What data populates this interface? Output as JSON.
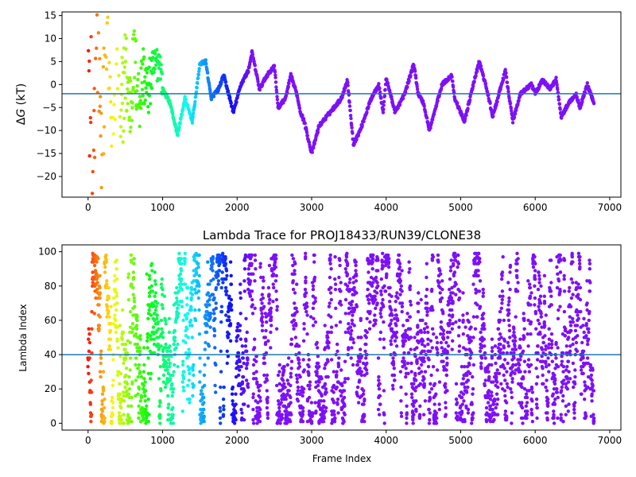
{
  "chart_data": [
    {
      "type": "scatter",
      "title": "",
      "xlabel": "",
      "ylabel": "ΔG (kT)",
      "ylabel_parts": {
        "delta": "Δ",
        "symbol": "G",
        "unit": " (kT)"
      },
      "xlim": [
        -350,
        7150
      ],
      "ylim": [
        -24.5,
        15.8
      ],
      "xticks": [
        0,
        1000,
        2000,
        3000,
        4000,
        5000,
        6000,
        7000
      ],
      "xtick_labels": [
        "0",
        "1000",
        "2000",
        "3000",
        "4000",
        "5000",
        "6000",
        "7000"
      ],
      "yticks": [
        -20,
        -15,
        -10,
        -5,
        0,
        5,
        10,
        15
      ],
      "ytick_labels": [
        "−20",
        "−15",
        "−10",
        "−5",
        "0",
        "5",
        "10",
        "15"
      ],
      "hline": -2,
      "grid": false,
      "colormap": "rainbow (red at frame 0 to violet at later frames)",
      "trace_keypoints": [
        {
          "x": 0,
          "y": 12
        },
        {
          "x": 60,
          "y": -22
        },
        {
          "x": 120,
          "y": 8
        },
        {
          "x": 180,
          "y": -18
        },
        {
          "x": 250,
          "y": 14
        },
        {
          "x": 320,
          "y": -10
        },
        {
          "x": 380,
          "y": 11
        },
        {
          "x": 430,
          "y": -14
        },
        {
          "x": 500,
          "y": 6
        },
        {
          "x": 560,
          "y": -8
        },
        {
          "x": 620,
          "y": 9
        },
        {
          "x": 680,
          "y": -6
        },
        {
          "x": 740,
          "y": 4
        },
        {
          "x": 800,
          "y": -3
        },
        {
          "x": 850,
          "y": 3
        },
        {
          "x": 900,
          "y": 7
        },
        {
          "x": 960,
          "y": 8.8
        },
        {
          "x": 1000,
          "y": -1
        },
        {
          "x": 1100,
          "y": -4
        },
        {
          "x": 1200,
          "y": -11
        },
        {
          "x": 1300,
          "y": -3
        },
        {
          "x": 1400,
          "y": -8
        },
        {
          "x": 1500,
          "y": 4.5
        },
        {
          "x": 1580,
          "y": 5
        },
        {
          "x": 1650,
          "y": -3
        },
        {
          "x": 1750,
          "y": -1
        },
        {
          "x": 1820,
          "y": 2
        },
        {
          "x": 1950,
          "y": -6
        },
        {
          "x": 2050,
          "y": 0
        },
        {
          "x": 2150,
          "y": 3
        },
        {
          "x": 2200,
          "y": 7
        },
        {
          "x": 2300,
          "y": -1
        },
        {
          "x": 2400,
          "y": 2
        },
        {
          "x": 2500,
          "y": 4
        },
        {
          "x": 2550,
          "y": -5
        },
        {
          "x": 2650,
          "y": -3
        },
        {
          "x": 2720,
          "y": 2
        },
        {
          "x": 2800,
          "y": -2
        },
        {
          "x": 2850,
          "y": -6
        },
        {
          "x": 2900,
          "y": -8
        },
        {
          "x": 3000,
          "y": -15
        },
        {
          "x": 3100,
          "y": -9
        },
        {
          "x": 3250,
          "y": -6
        },
        {
          "x": 3400,
          "y": -3
        },
        {
          "x": 3480,
          "y": 1
        },
        {
          "x": 3560,
          "y": -13
        },
        {
          "x": 3650,
          "y": -10
        },
        {
          "x": 3800,
          "y": -3
        },
        {
          "x": 3900,
          "y": 0
        },
        {
          "x": 3960,
          "y": -6
        },
        {
          "x": 4000,
          "y": 1.5
        },
        {
          "x": 4120,
          "y": -6
        },
        {
          "x": 4250,
          "y": -2
        },
        {
          "x": 4370,
          "y": 4.5
        },
        {
          "x": 4430,
          "y": -2
        },
        {
          "x": 4500,
          "y": -4
        },
        {
          "x": 4580,
          "y": -10
        },
        {
          "x": 4750,
          "y": 0
        },
        {
          "x": 4880,
          "y": 2
        },
        {
          "x": 4920,
          "y": -3
        },
        {
          "x": 5050,
          "y": -8
        },
        {
          "x": 5200,
          "y": 2
        },
        {
          "x": 5250,
          "y": 5
        },
        {
          "x": 5350,
          "y": -1
        },
        {
          "x": 5430,
          "y": -7
        },
        {
          "x": 5600,
          "y": 3
        },
        {
          "x": 5700,
          "y": -8
        },
        {
          "x": 5800,
          "y": -2
        },
        {
          "x": 5950,
          "y": 0
        },
        {
          "x": 6000,
          "y": -2
        },
        {
          "x": 6100,
          "y": 1
        },
        {
          "x": 6200,
          "y": -1
        },
        {
          "x": 6280,
          "y": 1.2
        },
        {
          "x": 6350,
          "y": -7
        },
        {
          "x": 6450,
          "y": -4
        },
        {
          "x": 6550,
          "y": -2
        },
        {
          "x": 6600,
          "y": -5
        },
        {
          "x": 6700,
          "y": 0
        },
        {
          "x": 6790,
          "y": -4
        }
      ],
      "noise": [
        0.0,
        2.5
      ]
    },
    {
      "type": "scatter",
      "title": "Lambda Trace for PROJ18433/RUN39/CLONE38",
      "xlabel": "Frame Index",
      "ylabel": "Lambda Index",
      "xlim": [
        -350,
        7150
      ],
      "ylim": [
        -4,
        104
      ],
      "xticks": [
        0,
        1000,
        2000,
        3000,
        4000,
        5000,
        6000,
        7000
      ],
      "xtick_labels": [
        "0",
        "1000",
        "2000",
        "3000",
        "4000",
        "5000",
        "6000",
        "7000"
      ],
      "yticks": [
        0,
        20,
        40,
        60,
        80,
        100
      ],
      "ytick_labels": [
        "0",
        "20",
        "40",
        "60",
        "80",
        "100"
      ],
      "hline": 40,
      "grid": false,
      "colormap": "rainbow (red at frame 0 to violet at later frames)",
      "frame_range": [
        0,
        6790
      ],
      "lambda_range": [
        0,
        99
      ],
      "point_count_estimate": 3400
    }
  ],
  "colors": {
    "hline": "#1f77b4",
    "axes": "#000000",
    "background": "#ffffff"
  }
}
